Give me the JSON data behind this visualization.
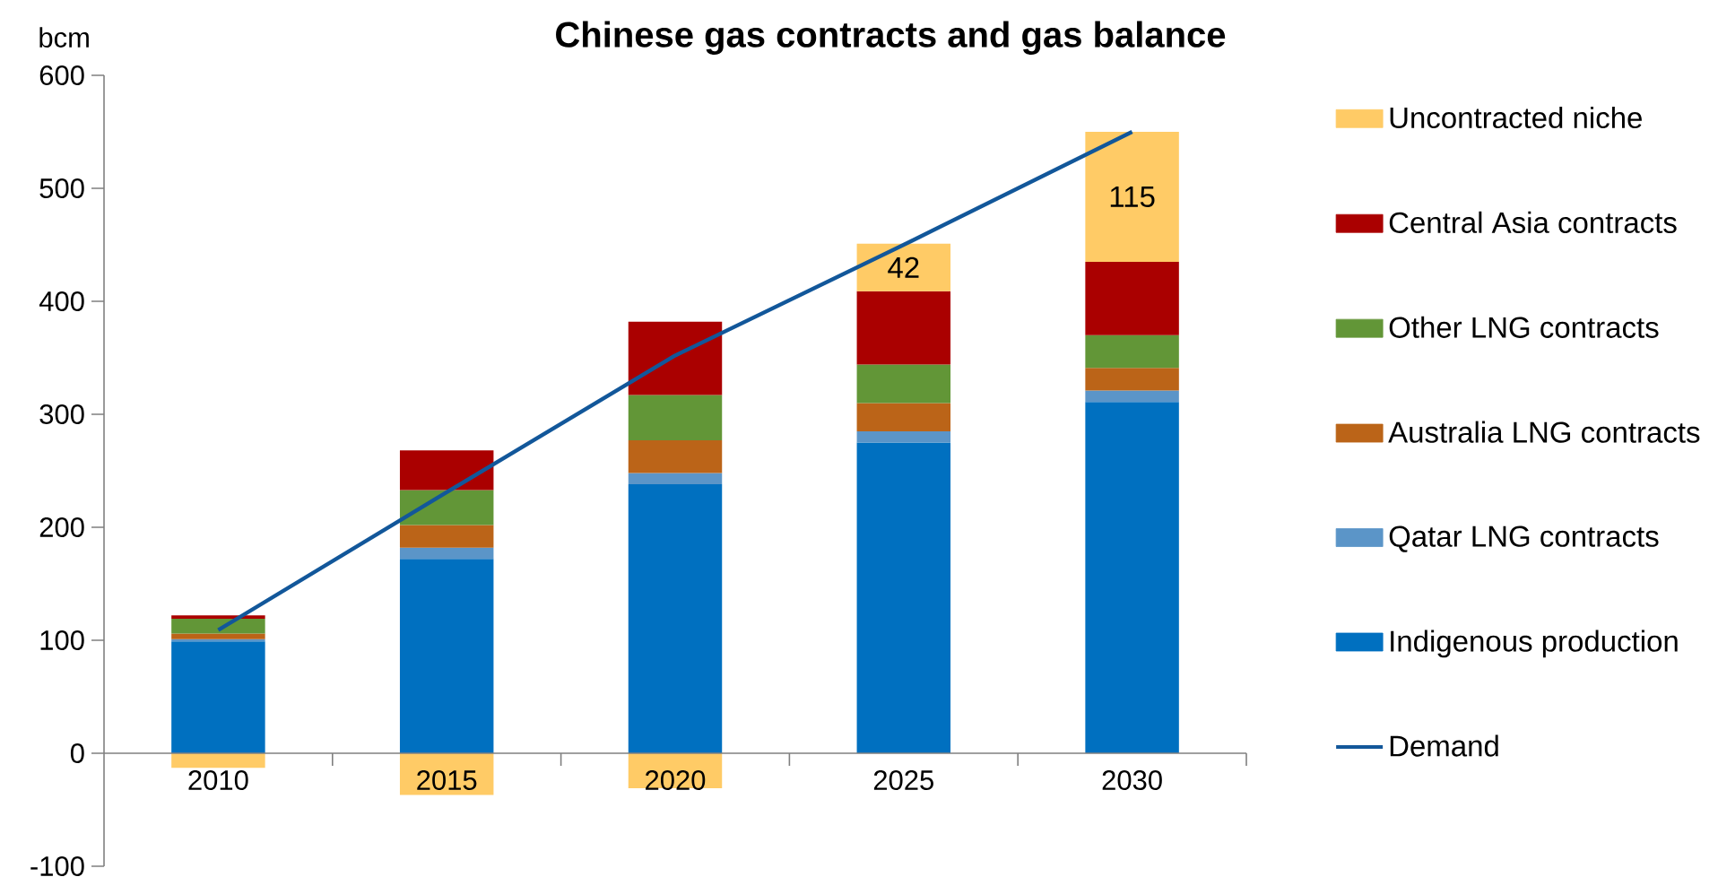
{
  "chart_data": {
    "type": "bar",
    "title": "Chinese gas contracts and gas balance",
    "ylabel": "bcm",
    "stacked": true,
    "legend": "right",
    "categories": [
      "2010",
      "2015",
      "2020",
      "2025",
      "2030"
    ],
    "ylim": [
      -100,
      600
    ],
    "yticks": [
      -100,
      0,
      100,
      200,
      300,
      400,
      500,
      600
    ],
    "series": [
      {
        "name": "Indigenous production",
        "color": "#0070c0",
        "values": [
          99,
          172,
          238,
          275,
          311
        ]
      },
      {
        "name": "Qatar LNG contracts",
        "color": "#5b95c8",
        "values": [
          2,
          10,
          10,
          10,
          10
        ]
      },
      {
        "name": "Australia LNG contracts",
        "color": "#bb6418",
        "values": [
          5,
          20,
          29,
          25,
          20
        ]
      },
      {
        "name": "Other LNG contracts",
        "color": "#629637",
        "values": [
          13,
          31,
          40,
          34,
          29
        ]
      },
      {
        "name": "Central Asia contracts",
        "color": "#aa0000",
        "values": [
          3,
          35,
          65,
          65,
          65
        ]
      },
      {
        "name": "Uncontracted niche",
        "color": "#ffcb66",
        "values": [
          -13,
          -37,
          -31,
          42,
          115
        ],
        "value_labels": [
          null,
          null,
          null,
          "42",
          "115"
        ]
      },
      {
        "name": "Demand",
        "type": "line",
        "color": "#12579a",
        "values": [
          109,
          231,
          352,
          450,
          550
        ]
      }
    ]
  }
}
